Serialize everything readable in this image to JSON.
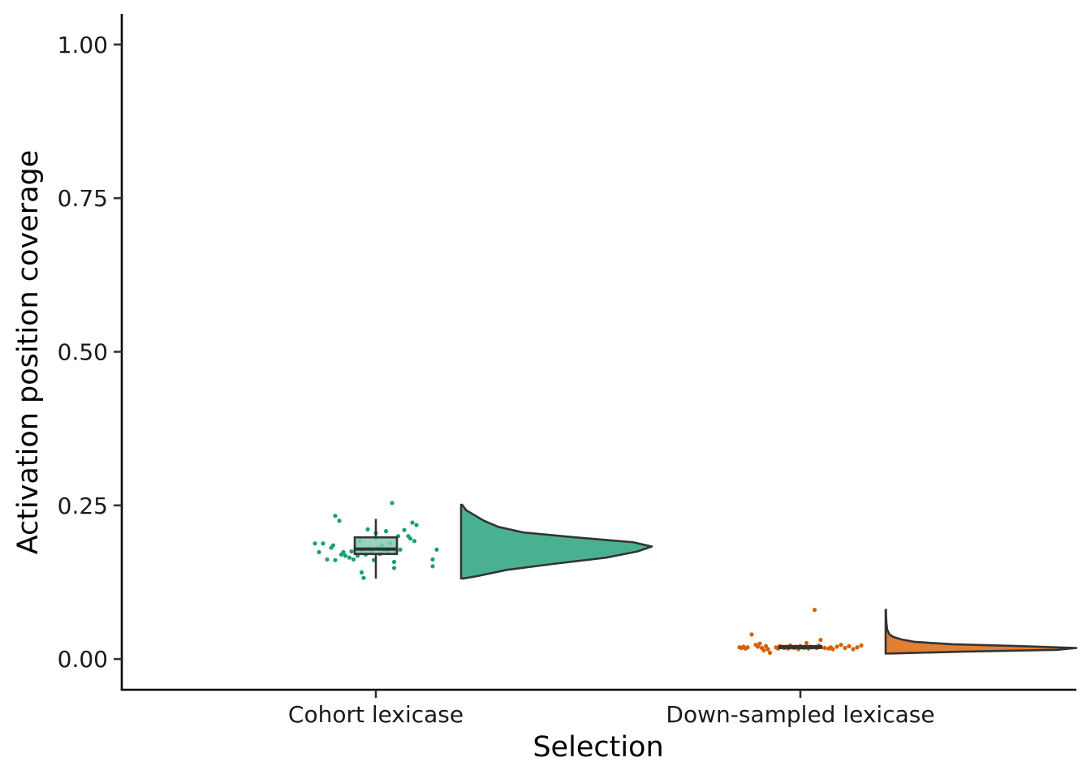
{
  "chart_data": {
    "type": "raincloud",
    "xlabel": "Selection",
    "ylabel": "Activation position coverage",
    "ylim": [
      -0.05,
      1.05
    ],
    "y_ticks": [
      {
        "value": 0.0,
        "label": "0.00"
      },
      {
        "value": 0.25,
        "label": "0.25"
      },
      {
        "value": 0.5,
        "label": "0.50"
      },
      {
        "value": 0.75,
        "label": "0.75"
      },
      {
        "value": 1.0,
        "label": "1.00"
      }
    ],
    "grid": false,
    "legend": "none",
    "categories": [
      "Cohort lexicase",
      "Down-sampled lexicase"
    ],
    "groups": [
      {
        "name": "Cohort lexicase",
        "color": "#1b9e77",
        "box": {
          "min": 0.131,
          "q1": 0.171,
          "median": 0.179,
          "q3": 0.198,
          "max": 0.228
        },
        "violin": {
          "min": 0.131,
          "max": 0.251,
          "density": [
            [
              0.131,
              0.1
            ],
            [
              0.135,
              0.8
            ],
            [
              0.145,
              2.2
            ],
            [
              0.155,
              4.5
            ],
            [
              0.165,
              7.0
            ],
            [
              0.175,
              8.5
            ],
            [
              0.183,
              9.2
            ],
            [
              0.19,
              8.3
            ],
            [
              0.198,
              5.5
            ],
            [
              0.206,
              3.0
            ],
            [
              0.215,
              1.8
            ],
            [
              0.225,
              1.1
            ],
            [
              0.235,
              0.6
            ],
            [
              0.242,
              0.25
            ],
            [
              0.251,
              0.05
            ]
          ]
        },
        "points": [
          {
            "x": -0.15,
            "y": 0.188
          },
          {
            "x": -0.14,
            "y": 0.174
          },
          {
            "x": -0.13,
            "y": 0.188
          },
          {
            "x": -0.12,
            "y": 0.162
          },
          {
            "x": -0.11,
            "y": 0.181
          },
          {
            "x": -0.105,
            "y": 0.185
          },
          {
            "x": -0.1,
            "y": 0.233
          },
          {
            "x": -0.1,
            "y": 0.161
          },
          {
            "x": -0.09,
            "y": 0.225
          },
          {
            "x": -0.085,
            "y": 0.17
          },
          {
            "x": -0.08,
            "y": 0.174
          },
          {
            "x": -0.075,
            "y": 0.168
          },
          {
            "x": -0.065,
            "y": 0.165
          },
          {
            "x": -0.06,
            "y": 0.175
          },
          {
            "x": -0.055,
            "y": 0.162
          },
          {
            "x": -0.05,
            "y": 0.18
          },
          {
            "x": -0.045,
            "y": 0.168
          },
          {
            "x": -0.04,
            "y": 0.192
          },
          {
            "x": -0.035,
            "y": 0.141
          },
          {
            "x": -0.035,
            "y": 0.177
          },
          {
            "x": -0.03,
            "y": 0.132
          },
          {
            "x": -0.025,
            "y": 0.17
          },
          {
            "x": -0.02,
            "y": 0.211
          },
          {
            "x": -0.015,
            "y": 0.18
          },
          {
            "x": -0.01,
            "y": 0.175
          },
          {
            "x": -0.005,
            "y": 0.161
          },
          {
            "x": 0.0,
            "y": 0.196
          },
          {
            "x": 0.0,
            "y": 0.205
          },
          {
            "x": 0.005,
            "y": 0.18
          },
          {
            "x": 0.01,
            "y": 0.171
          },
          {
            "x": 0.015,
            "y": 0.185
          },
          {
            "x": 0.02,
            "y": 0.178
          },
          {
            "x": 0.025,
            "y": 0.208
          },
          {
            "x": 0.03,
            "y": 0.176
          },
          {
            "x": 0.035,
            "y": 0.188
          },
          {
            "x": 0.04,
            "y": 0.254
          },
          {
            "x": 0.045,
            "y": 0.158
          },
          {
            "x": 0.045,
            "y": 0.148
          },
          {
            "x": 0.05,
            "y": 0.175
          },
          {
            "x": 0.055,
            "y": 0.2
          },
          {
            "x": 0.06,
            "y": 0.178
          },
          {
            "x": 0.07,
            "y": 0.21
          },
          {
            "x": 0.08,
            "y": 0.2
          },
          {
            "x": 0.085,
            "y": 0.196
          },
          {
            "x": 0.09,
            "y": 0.222
          },
          {
            "x": 0.095,
            "y": 0.192
          },
          {
            "x": 0.1,
            "y": 0.218
          },
          {
            "x": 0.14,
            "y": 0.162
          },
          {
            "x": 0.14,
            "y": 0.151
          },
          {
            "x": 0.15,
            "y": 0.178
          }
        ]
      },
      {
        "name": "Down-sampled lexicase",
        "color": "#d95f02",
        "box": {
          "min": 0.016,
          "q1": 0.018,
          "median": 0.019,
          "q3": 0.021,
          "max": 0.023
        },
        "violin": {
          "min": 0.009,
          "max": 0.08,
          "density": [
            [
              0.009,
              0.3
            ],
            [
              0.012,
              4.0
            ],
            [
              0.015,
              9.0
            ],
            [
              0.018,
              10.0
            ],
            [
              0.021,
              7.0
            ],
            [
              0.024,
              3.5
            ],
            [
              0.028,
              1.5
            ],
            [
              0.032,
              0.8
            ],
            [
              0.036,
              0.4
            ],
            [
              0.04,
              0.2
            ],
            [
              0.048,
              0.08
            ],
            [
              0.06,
              0.04
            ],
            [
              0.07,
              0.025
            ],
            [
              0.078,
              0.02
            ],
            [
              0.08,
              0.02
            ]
          ]
        },
        "points": [
          {
            "x": -0.15,
            "y": 0.019
          },
          {
            "x": -0.145,
            "y": 0.018
          },
          {
            "x": -0.14,
            "y": 0.02
          },
          {
            "x": -0.135,
            "y": 0.017
          },
          {
            "x": -0.13,
            "y": 0.019
          },
          {
            "x": -0.12,
            "y": 0.04
          },
          {
            "x": -0.11,
            "y": 0.023
          },
          {
            "x": -0.105,
            "y": 0.02
          },
          {
            "x": -0.1,
            "y": 0.025
          },
          {
            "x": -0.095,
            "y": 0.018
          },
          {
            "x": -0.09,
            "y": 0.014
          },
          {
            "x": -0.085,
            "y": 0.021
          },
          {
            "x": -0.08,
            "y": 0.016
          },
          {
            "x": -0.075,
            "y": 0.01
          },
          {
            "x": -0.06,
            "y": 0.019
          },
          {
            "x": -0.055,
            "y": 0.017
          },
          {
            "x": -0.05,
            "y": 0.021
          },
          {
            "x": -0.04,
            "y": 0.018
          },
          {
            "x": -0.035,
            "y": 0.02
          },
          {
            "x": -0.03,
            "y": 0.017
          },
          {
            "x": -0.025,
            "y": 0.022
          },
          {
            "x": -0.02,
            "y": 0.019
          },
          {
            "x": -0.015,
            "y": 0.018
          },
          {
            "x": -0.01,
            "y": 0.02
          },
          {
            "x": -0.005,
            "y": 0.016
          },
          {
            "x": 0.0,
            "y": 0.021
          },
          {
            "x": 0.005,
            "y": 0.019
          },
          {
            "x": 0.01,
            "y": 0.018
          },
          {
            "x": 0.015,
            "y": 0.026
          },
          {
            "x": 0.02,
            "y": 0.017
          },
          {
            "x": 0.025,
            "y": 0.02
          },
          {
            "x": 0.03,
            "y": 0.019
          },
          {
            "x": 0.035,
            "y": 0.08
          },
          {
            "x": 0.04,
            "y": 0.018
          },
          {
            "x": 0.045,
            "y": 0.022
          },
          {
            "x": 0.05,
            "y": 0.031
          },
          {
            "x": 0.06,
            "y": 0.018
          },
          {
            "x": 0.07,
            "y": 0.017
          },
          {
            "x": 0.075,
            "y": 0.019
          },
          {
            "x": 0.08,
            "y": 0.016
          },
          {
            "x": 0.09,
            "y": 0.02
          },
          {
            "x": 0.1,
            "y": 0.023
          },
          {
            "x": 0.11,
            "y": 0.018
          },
          {
            "x": 0.12,
            "y": 0.021
          },
          {
            "x": 0.13,
            "y": 0.016
          },
          {
            "x": 0.14,
            "y": 0.019
          },
          {
            "x": 0.15,
            "y": 0.022
          }
        ]
      }
    ]
  }
}
